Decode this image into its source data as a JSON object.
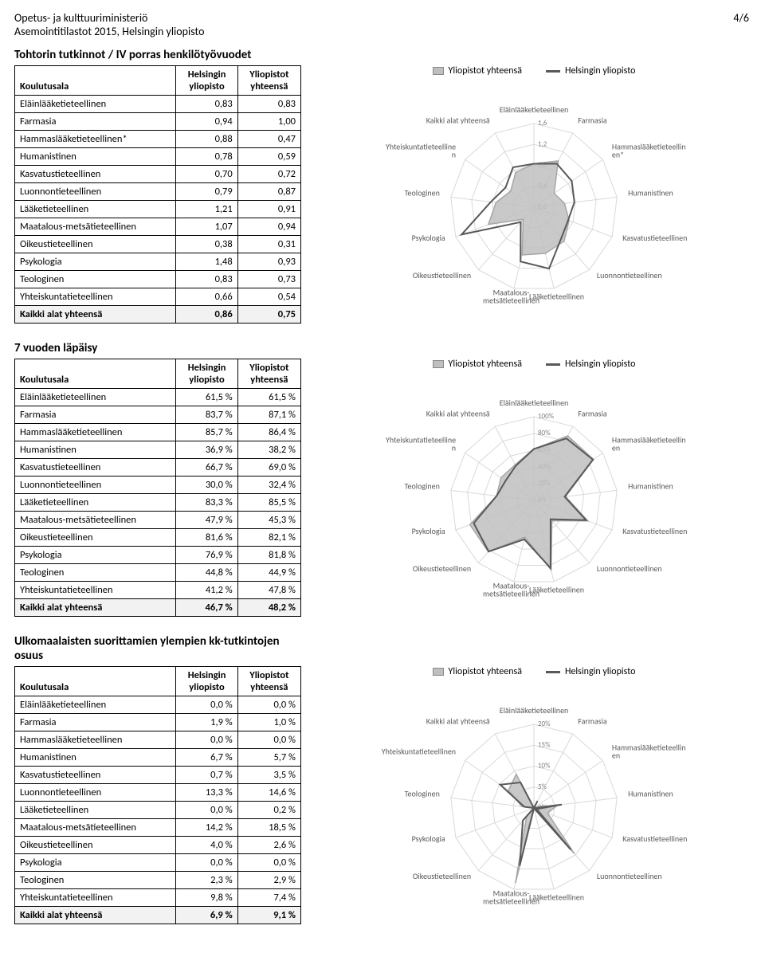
{
  "header": {
    "line1": "Opetus- ja kulttuuriministeriö",
    "line2": "Asemointitilastot 2015, Helsingin yliopisto",
    "page": "4/6"
  },
  "colors": {
    "series_fill": "#bfbfbf",
    "series_line_yht": "#a6a6a6",
    "series_line_hel": "#595959",
    "grid": "#d9d9d9",
    "border": "#000000",
    "total_bg": "#f2f2f2"
  },
  "legend": {
    "yht": "Yliopistot yhteensä",
    "hel": "Helsingin yliopisto"
  },
  "axes_labels": [
    "Eläinlääketieteellinen",
    "Farmasia",
    "Hammaslääketieteellin\nen*",
    "Humanistinen",
    "Kasvatustieteellinen",
    "Luonnontieteellinen",
    "Lääketieteellinen",
    "Maatalous-\nmetsätieteellinen",
    "Oikeustieteellinen",
    "Psykologia",
    "Teologinen",
    "Yhteiskuntatieteelline\nn",
    "Kaikki alat yhteensä"
  ],
  "tables": {
    "t1": {
      "title": "Tohtorin tutkinnot / IV porras henkilötyövuodet",
      "col_key": "Koulutusala",
      "col_a": "Helsingin\nyliopisto",
      "col_b": "Yliopistot\nyhteensä",
      "rows": [
        [
          "Eläinlääketieteellinen",
          "0,83",
          "0,83"
        ],
        [
          "Farmasia",
          "0,94",
          "1,00"
        ],
        [
          "Hammaslääketieteellinen*",
          "0,88",
          "0,47"
        ],
        [
          "Humanistinen",
          "0,78",
          "0,59"
        ],
        [
          "Kasvatustieteellinen",
          "0,70",
          "0,72"
        ],
        [
          "Luonnontieteellinen",
          "0,79",
          "0,87"
        ],
        [
          "Lääketieteellinen",
          "1,21",
          "0,91"
        ],
        [
          "Maatalous-metsätieteellinen",
          "1,07",
          "0,94"
        ],
        [
          "Oikeustieteellinen",
          "0,38",
          "0,31"
        ],
        [
          "Psykologia",
          "1,48",
          "0,93"
        ],
        [
          "Teologinen",
          "0,83",
          "0,73"
        ],
        [
          "Yhteiskuntatieteellinen",
          "0,66",
          "0,54"
        ]
      ],
      "total": [
        "Kaikki alat yhteensä",
        "0,86",
        "0,75"
      ],
      "ticks": [
        "0,0",
        "0,4",
        "0,8",
        "1,2",
        "1,6"
      ],
      "max": 1.6,
      "hel": [
        0.83,
        0.94,
        0.88,
        0.78,
        0.7,
        0.79,
        1.21,
        1.07,
        0.38,
        1.48,
        0.83,
        0.66,
        0.86
      ],
      "yht": [
        0.83,
        1.0,
        0.47,
        0.59,
        0.72,
        0.87,
        0.91,
        0.94,
        0.31,
        0.93,
        0.73,
        0.54,
        0.75
      ]
    },
    "t2": {
      "title": "7 vuoden läpäisy",
      "col_key": "Koulutusala",
      "col_a": "Helsingin\nyliopisto",
      "col_b": "Yliopistot\nyhteensä",
      "rows": [
        [
          "Eläinlääketieteellinen",
          "61,5 %",
          "61,5 %"
        ],
        [
          "Farmasia",
          "83,7 %",
          "87,1 %"
        ],
        [
          "Hammaslääketieteellinen",
          "85,7 %",
          "86,4 %"
        ],
        [
          "Humanistinen",
          "36,9 %",
          "38,2 %"
        ],
        [
          "Kasvatustieteellinen",
          "66,7 %",
          "69,0 %"
        ],
        [
          "Luonnontieteellinen",
          "30,0 %",
          "32,4 %"
        ],
        [
          "Lääketieteellinen",
          "83,3 %",
          "85,5 %"
        ],
        [
          "Maatalous-metsätieteellinen",
          "47,9 %",
          "45,3 %"
        ],
        [
          "Oikeustieteellinen",
          "81,6 %",
          "82,1 %"
        ],
        [
          "Psykologia",
          "76,9 %",
          "81,8 %"
        ],
        [
          "Teologinen",
          "44,8 %",
          "44,9 %"
        ],
        [
          "Yhteiskuntatieteellinen",
          "41,2 %",
          "47,8 %"
        ]
      ],
      "total": [
        "Kaikki alat yhteensä",
        "46,7 %",
        "48,2 %"
      ],
      "ticks": [
        "0%",
        "20%",
        "40%",
        "60%",
        "80%",
        "100%"
      ],
      "max": 100,
      "hel": [
        61.5,
        83.7,
        85.7,
        36.9,
        66.7,
        30.0,
        83.3,
        47.9,
        81.6,
        76.9,
        44.8,
        41.2,
        46.7
      ],
      "yht": [
        61.5,
        87.1,
        86.4,
        38.2,
        69.0,
        32.4,
        85.5,
        45.3,
        82.1,
        81.8,
        44.9,
        47.8,
        48.2
      ],
      "axis_label_override_2": "Hammaslääketieteellin\nen"
    },
    "t3": {
      "title": "Ulkomaalaisten suorittamien ylempien kk-tutkintojen osuus",
      "col_key": "Koulutusala",
      "col_a": "Helsingin\nyliopisto",
      "col_b": "Yliopistot\nyhteensä",
      "rows": [
        [
          "Eläinlääketieteellinen",
          "0,0 %",
          "0,0 %"
        ],
        [
          "Farmasia",
          "1,9 %",
          "1,0 %"
        ],
        [
          "Hammaslääketieteellinen",
          "0,0 %",
          "0,0 %"
        ],
        [
          "Humanistinen",
          "6,7 %",
          "5,7 %"
        ],
        [
          "Kasvatustieteellinen",
          "0,7 %",
          "3,5 %"
        ],
        [
          "Luonnontieteellinen",
          "13,3 %",
          "14,6 %"
        ],
        [
          "Lääketieteellinen",
          "0,0 %",
          "0,2 %"
        ],
        [
          "Maatalous-metsätieteellinen",
          "14,2 %",
          "18,5 %"
        ],
        [
          "Oikeustieteellinen",
          "4,0 %",
          "2,6 %"
        ],
        [
          "Psykologia",
          "0,0 %",
          "0,0 %"
        ],
        [
          "Teologinen",
          "2,3 %",
          "2,9 %"
        ],
        [
          "Yhteiskuntatieteellinen",
          "9,8 %",
          "7,4 %"
        ]
      ],
      "total": [
        "Kaikki alat yhteensä",
        "6,9 %",
        "9,1 %"
      ],
      "ticks": [
        "0%",
        "5%",
        "10%",
        "15%",
        "20%"
      ],
      "max": 20,
      "hel": [
        0.0,
        1.9,
        0.0,
        6.7,
        0.7,
        13.3,
        0.0,
        14.2,
        4.0,
        0.0,
        2.3,
        9.8,
        6.9
      ],
      "yht": [
        0.0,
        1.0,
        0.0,
        5.7,
        3.5,
        14.6,
        0.2,
        18.5,
        2.6,
        0.0,
        2.9,
        7.4,
        9.1
      ],
      "axis_label_override_2": "Hammaslääketieteellin\nen",
      "axis_label_override_11": "Yhteiskuntatieteellinen"
    }
  }
}
